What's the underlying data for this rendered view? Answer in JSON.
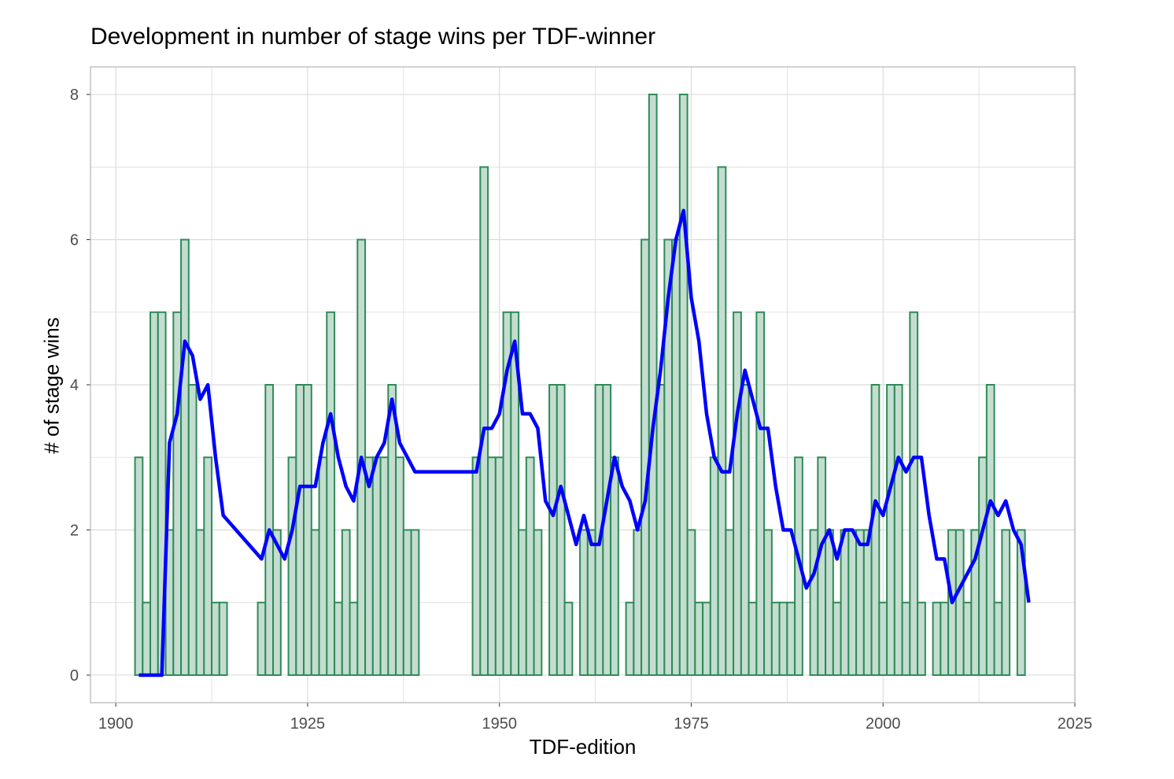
{
  "chart_data": {
    "type": "bar",
    "title": "Development in number of stage wins per TDF-winner",
    "xlabel": "TDF-edition",
    "ylabel": "# of stage wins",
    "xlim": [
      1896.7,
      2025
    ],
    "ylim": [
      -0.38,
      8.38
    ],
    "xticks": [
      "1900",
      "1925",
      "1950",
      "1975",
      "2000",
      "2025"
    ],
    "yticks": [
      "0",
      "2",
      "4",
      "6",
      "8"
    ],
    "grid": true,
    "legend": "none",
    "colors": {
      "bar_fill": "#c4ddd0",
      "bar_stroke": "#2e8b57",
      "line": "#0000ff",
      "grid": "#dcdcdc",
      "panel_border": "#b3b3b3"
    },
    "bars": {
      "x": [
        1903,
        1904,
        1905,
        1906,
        1907,
        1908,
        1909,
        1910,
        1911,
        1912,
        1913,
        1914,
        1919,
        1920,
        1921,
        1922,
        1923,
        1924,
        1925,
        1926,
        1927,
        1928,
        1929,
        1930,
        1931,
        1932,
        1933,
        1934,
        1935,
        1936,
        1937,
        1938,
        1939,
        1947,
        1948,
        1949,
        1950,
        1951,
        1952,
        1953,
        1954,
        1955,
        1956,
        1957,
        1958,
        1959,
        1960,
        1961,
        1962,
        1963,
        1964,
        1965,
        1966,
        1967,
        1968,
        1969,
        1970,
        1971,
        1972,
        1973,
        1974,
        1975,
        1976,
        1977,
        1978,
        1979,
        1980,
        1981,
        1982,
        1983,
        1984,
        1985,
        1986,
        1987,
        1988,
        1989,
        1990,
        1991,
        1992,
        1993,
        1994,
        1995,
        1996,
        1997,
        1998,
        1999,
        2000,
        2001,
        2002,
        2003,
        2004,
        2005,
        2006,
        2007,
        2008,
        2009,
        2010,
        2011,
        2012,
        2013,
        2014,
        2015,
        2016,
        2017,
        2018,
        2019
      ],
      "values": [
        3,
        1,
        5,
        5,
        2,
        5,
        6,
        4,
        2,
        3,
        1,
        1,
        1,
        4,
        2,
        0,
        3,
        4,
        4,
        2,
        3,
        5,
        1,
        2,
        1,
        6,
        3,
        3,
        3,
        4,
        3,
        2,
        2,
        3,
        7,
        3,
        3,
        5,
        5,
        2,
        3,
        2,
        0,
        4,
        4,
        1,
        0,
        2,
        2,
        4,
        4,
        3,
        0,
        1,
        2,
        6,
        8,
        4,
        6,
        6,
        8,
        2,
        1,
        1,
        3,
        7,
        2,
        5,
        4,
        1,
        5,
        2,
        1,
        1,
        1,
        3,
        0,
        2,
        3,
        2,
        1,
        2,
        2,
        2,
        2,
        4,
        1,
        4,
        4,
        1,
        5,
        1,
        0,
        1,
        1,
        2,
        2,
        1,
        2,
        3,
        4,
        1,
        2,
        0,
        2,
        0
      ]
    },
    "line": {
      "x": [
        1903,
        1904,
        1905,
        1906,
        1907,
        1908,
        1909,
        1910,
        1911,
        1912,
        1913,
        1914,
        1919,
        1920,
        1921,
        1922,
        1923,
        1924,
        1925,
        1926,
        1927,
        1928,
        1929,
        1930,
        1931,
        1932,
        1933,
        1934,
        1935,
        1936,
        1937,
        1938,
        1939,
        1947,
        1948,
        1949,
        1950,
        1951,
        1952,
        1953,
        1954,
        1955,
        1956,
        1957,
        1958,
        1959,
        1960,
        1961,
        1962,
        1963,
        1964,
        1965,
        1966,
        1967,
        1968,
        1969,
        1970,
        1971,
        1972,
        1973,
        1974,
        1975,
        1976,
        1977,
        1978,
        1979,
        1980,
        1981,
        1982,
        1983,
        1984,
        1985,
        1986,
        1987,
        1988,
        1989,
        1990,
        1991,
        1992,
        1993,
        1994,
        1995,
        1996,
        1997,
        1998,
        1999,
        2000,
        2001,
        2002,
        2003,
        2004,
        2005,
        2006,
        2007,
        2008,
        2009,
        2010,
        2011,
        2012,
        2013,
        2014,
        2015,
        2016,
        2017,
        2018,
        2019
      ],
      "values": [
        0,
        0,
        0,
        0,
        3.2,
        3.6,
        4.6,
        4.4,
        3.8,
        4.0,
        3.0,
        2.2,
        1.6,
        2.0,
        1.8,
        1.6,
        2.0,
        2.6,
        2.6,
        2.6,
        3.2,
        3.6,
        3.0,
        2.6,
        2.4,
        3.0,
        2.6,
        3.0,
        3.2,
        3.8,
        3.2,
        3.0,
        2.8,
        2.8,
        3.4,
        3.4,
        3.6,
        4.2,
        4.6,
        3.6,
        3.6,
        3.4,
        2.4,
        2.2,
        2.6,
        2.2,
        1.8,
        2.2,
        1.8,
        1.8,
        2.4,
        3.0,
        2.6,
        2.4,
        2.0,
        2.4,
        3.4,
        4.2,
        5.2,
        6.0,
        6.4,
        5.2,
        4.6,
        3.6,
        3.0,
        2.8,
        2.8,
        3.6,
        4.2,
        3.8,
        3.4,
        3.4,
        2.6,
        2.0,
        2.0,
        1.6,
        1.2,
        1.4,
        1.8,
        2.0,
        1.6,
        2.0,
        2.0,
        1.8,
        1.8,
        2.4,
        2.2,
        2.6,
        3.0,
        2.8,
        3.0,
        3.0,
        2.2,
        1.6,
        1.6,
        1.0,
        1.2,
        1.4,
        1.6,
        2.0,
        2.4,
        2.2,
        2.4,
        2.0,
        1.8,
        1.0
      ]
    }
  }
}
